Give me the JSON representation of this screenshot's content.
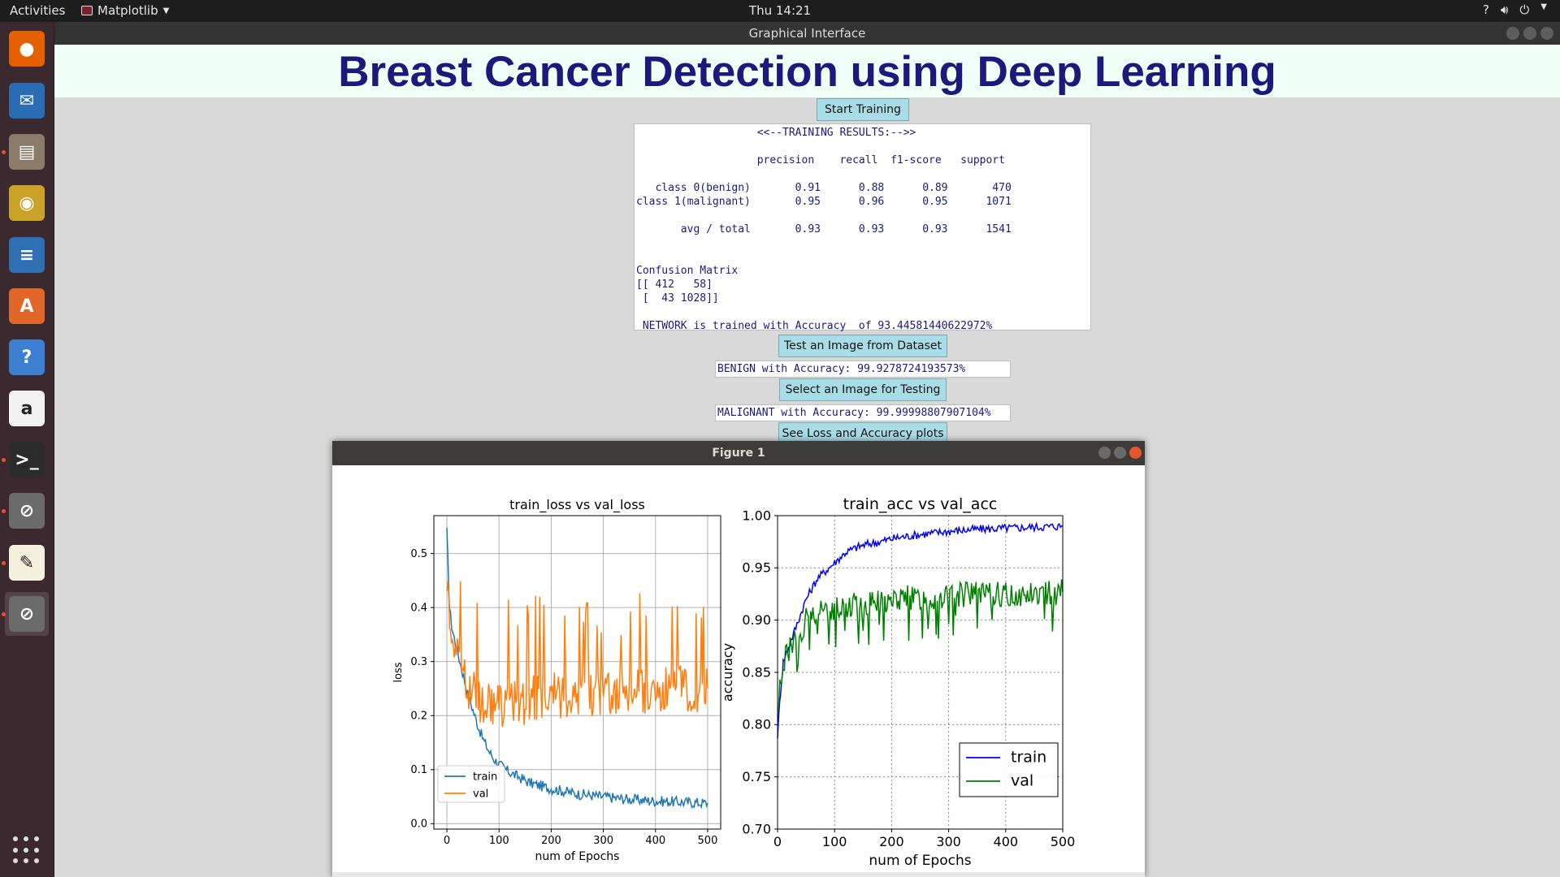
{
  "topbar": {
    "activities": "Activities",
    "app_menu": "Matplotlib",
    "clock": "Thu 14:21",
    "tray_icons": [
      "help-icon",
      "volume-icon",
      "power-icon"
    ]
  },
  "dock": {
    "items": [
      {
        "name": "firefox",
        "color": "#e66000",
        "glyph": "●"
      },
      {
        "name": "thunderbird",
        "color": "#2a6db5",
        "glyph": "✉"
      },
      {
        "name": "files",
        "color": "#8a7b6a",
        "glyph": "▤"
      },
      {
        "name": "rhythmbox",
        "color": "#c9a227",
        "glyph": "◉"
      },
      {
        "name": "writer",
        "color": "#2f6fb3",
        "glyph": "≡"
      },
      {
        "name": "software",
        "color": "#e0662a",
        "glyph": "A"
      },
      {
        "name": "help",
        "color": "#3d7fd1",
        "glyph": "?"
      },
      {
        "name": "amazon",
        "color": "#f2f2f2",
        "glyph": "a"
      },
      {
        "name": "terminal",
        "color": "#2b2b2b",
        "glyph": ">_"
      },
      {
        "name": "blocked-app-1",
        "color": "#6b6b6b",
        "glyph": "⊘"
      },
      {
        "name": "text-editor",
        "color": "#f4f1de",
        "glyph": "✎"
      },
      {
        "name": "blocked-app-2",
        "color": "#6b6b6b",
        "glyph": "⊘"
      }
    ]
  },
  "window": {
    "title": "Graphical Interface",
    "heading": "Breast Cancer Detection using Deep Learning",
    "start_training": "Start Training",
    "results_text": "                   <<--TRAINING RESULTS:-->>\n\n                   precision    recall  f1-score   support\n\n   class 0(benign)       0.91      0.88      0.89       470\nclass 1(malignant)       0.95      0.96      0.95      1071\n\n       avg / total       0.93      0.93      0.93      1541\n\n\nConfusion Matrix\n[[ 412   58]\n [  43 1028]]\n\n NETWORK is trained with Accuracy  of 93.44581440622972%",
    "test_dataset_button": "Test an Image from Dataset",
    "test_dataset_result": "BENIGN with Accuracy: 99.9278724193573%",
    "select_image_button": "Select an Image for Testing",
    "select_image_result": "MALIGNANT with Accuracy: 99.99998807907104%",
    "plots_button": "See Loss and Accuracy plots"
  },
  "figure": {
    "window_title": "Figure 1"
  },
  "chart_data": [
    {
      "type": "line",
      "title": "train_loss vs val_loss",
      "xlabel": "num of Epochs",
      "ylabel": "loss",
      "xlim": [
        -25,
        525
      ],
      "ylim": [
        -0.01,
        0.57
      ],
      "xticks": [
        0,
        100,
        200,
        300,
        400,
        500
      ],
      "yticks": [
        0.0,
        0.1,
        0.2,
        0.3,
        0.4,
        0.5
      ],
      "grid": true,
      "legend": "lower-left",
      "series": [
        {
          "name": "train",
          "color": "#1f77b4",
          "x": [
            0,
            5,
            10,
            20,
            30,
            40,
            50,
            60,
            70,
            80,
            90,
            100,
            120,
            140,
            160,
            180,
            200,
            250,
            300,
            350,
            400,
            450,
            500
          ],
          "y": [
            0.54,
            0.4,
            0.36,
            0.32,
            0.28,
            0.24,
            0.21,
            0.18,
            0.155,
            0.135,
            0.12,
            0.11,
            0.095,
            0.085,
            0.075,
            0.07,
            0.065,
            0.055,
            0.05,
            0.045,
            0.042,
            0.04,
            0.038
          ]
        },
        {
          "name": "val",
          "color": "#ff7f0e",
          "x": [
            0,
            5,
            10,
            20,
            30,
            40,
            50,
            60,
            70,
            80,
            90,
            100,
            120,
            140,
            160,
            180,
            200,
            250,
            300,
            350,
            400,
            450,
            500
          ],
          "y": [
            0.46,
            0.4,
            0.35,
            0.31,
            0.29,
            0.26,
            0.24,
            0.23,
            0.225,
            0.22,
            0.22,
            0.22,
            0.225,
            0.225,
            0.23,
            0.23,
            0.235,
            0.24,
            0.24,
            0.245,
            0.245,
            0.25,
            0.25
          ]
        }
      ]
    },
    {
      "type": "line",
      "title": "train_acc vs val_acc",
      "xlabel": "num of Epochs",
      "ylabel": "accuracy",
      "xlim": [
        0,
        500
      ],
      "ylim": [
        0.7,
        1.0
      ],
      "xticks": [
        0,
        100,
        200,
        300,
        400,
        500
      ],
      "yticks": [
        0.7,
        0.75,
        0.8,
        0.85,
        0.9,
        0.95,
        1.0
      ],
      "grid": true,
      "legend": "lower-right",
      "series": [
        {
          "name": "train",
          "color": "#0000ff",
          "x": [
            0,
            5,
            10,
            20,
            30,
            40,
            50,
            60,
            70,
            80,
            100,
            120,
            140,
            160,
            180,
            200,
            250,
            300,
            350,
            400,
            450,
            500
          ],
          "y": [
            0.79,
            0.83,
            0.86,
            0.875,
            0.89,
            0.905,
            0.92,
            0.93,
            0.94,
            0.945,
            0.955,
            0.965,
            0.97,
            0.973,
            0.975,
            0.978,
            0.982,
            0.985,
            0.987,
            0.988,
            0.989,
            0.99
          ]
        },
        {
          "name": "val",
          "color": "#008000",
          "x": [
            0,
            5,
            10,
            20,
            30,
            40,
            50,
            60,
            70,
            80,
            100,
            120,
            140,
            160,
            180,
            200,
            250,
            300,
            350,
            400,
            450,
            500
          ],
          "y": [
            0.81,
            0.84,
            0.86,
            0.87,
            0.88,
            0.89,
            0.9,
            0.905,
            0.905,
            0.91,
            0.912,
            0.915,
            0.915,
            0.918,
            0.918,
            0.92,
            0.922,
            0.923,
            0.925,
            0.925,
            0.926,
            0.927
          ]
        }
      ]
    }
  ]
}
